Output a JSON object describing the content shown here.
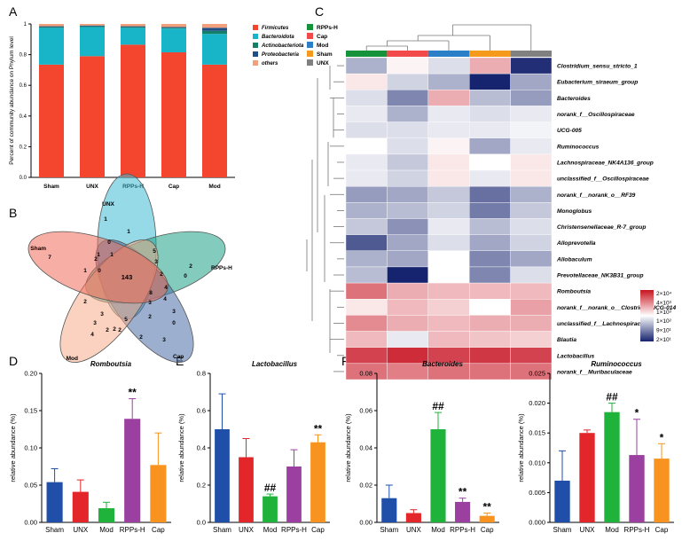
{
  "colors": {
    "firmicutes": "#f4462e",
    "bacteroidota": "#18b4c8",
    "actinobacteriota": "#14806a",
    "proteobacteria": "#1f4f86",
    "others": "#f2a07c",
    "rpps_h": "#16923a",
    "cap": "#f24a4a",
    "mod": "#2a7fc6",
    "sham": "#f59a1d",
    "unx": "#808080",
    "bar_sham": "#1f4fa8",
    "bar_unx": "#e3262a",
    "bar_mod": "#20b33c",
    "bar_rpps": "#9b3fa0",
    "bar_cap": "#f7931e"
  },
  "panel_letters": [
    "A",
    "B",
    "C",
    "D",
    "E",
    "F",
    "G"
  ],
  "chart_data": [
    {
      "id": "A",
      "type": "bar",
      "stacked": true,
      "ylabel": "Percent of community abundance on Phylum level",
      "ylim": [
        0,
        1
      ],
      "yticks": [
        "0.0",
        "0.2",
        "0.4",
        "0.6",
        "0.8",
        "1"
      ],
      "categories": [
        "Sham",
        "UNX",
        "RPPs-H",
        "Cap",
        "Mod"
      ],
      "series": [
        {
          "name": "Firmicutes",
          "values": [
            0.735,
            0.79,
            0.865,
            0.815,
            0.735
          ]
        },
        {
          "name": "Bacteroidota",
          "values": [
            0.24,
            0.19,
            0.11,
            0.155,
            0.2
          ]
        },
        {
          "name": "Actinobacteriota",
          "values": [
            0.005,
            0.005,
            0.005,
            0.005,
            0.02
          ]
        },
        {
          "name": "Proteobacteria",
          "values": [
            0.005,
            0.005,
            0.005,
            0.005,
            0.02
          ]
        },
        {
          "name": "others",
          "values": [
            0.015,
            0.01,
            0.015,
            0.02,
            0.025
          ]
        }
      ]
    },
    {
      "id": "B",
      "type": "venn",
      "sets": [
        "UNX",
        "RPPs-H",
        "Cap",
        "Mod",
        "Sham"
      ],
      "core": "143",
      "counts": [
        "1",
        "1",
        "0",
        "5",
        "3",
        "2",
        "2",
        "4",
        "4",
        "3",
        "0",
        "8",
        "3",
        "2",
        "0",
        "3",
        "2",
        "5",
        "2",
        "2",
        "2",
        "3",
        "4",
        "7",
        "2",
        "1",
        "1",
        "0",
        "1",
        "2",
        "3"
      ]
    },
    {
      "id": "C",
      "type": "heatmap",
      "groups": [
        "RPPs-H",
        "Cap",
        "Mod",
        "Sham",
        "UNX"
      ],
      "rows": [
        "Clostridium_sensu_stricto_1",
        "Eubacterium_siraeum_group",
        "Bacteroides",
        "norank_f__Oscillospiraceae",
        "UCG-005",
        "Ruminococcus",
        "Lachnospiraceae_NK4A136_group",
        "unclassified_f__Oscillospiraceae",
        "norank_f__norank_o__RF39",
        "Monoglobus",
        "Christensenellaceae_R-7_group",
        "Alloprevotella",
        "Allobaculum",
        "Prevotellaceae_NK3B31_group",
        "Romboutsia",
        "norank_f__norank_o__Clostridia_UCG-014",
        "unclassified_f__Lachnospiraceae",
        "Blautia",
        "Lactobacillus",
        "norank_f__Muribaculaceae"
      ],
      "values": [
        [
          -0.35,
          0.05,
          -0.15,
          0.35,
          -0.95
        ],
        [
          0.1,
          -0.2,
          -0.35,
          -1.0,
          -0.4
        ],
        [
          -0.15,
          -0.55,
          0.35,
          -0.3,
          -0.45
        ],
        [
          -0.1,
          -0.35,
          -0.1,
          -0.15,
          -0.1
        ],
        [
          -0.15,
          -0.15,
          -0.1,
          -0.1,
          -0.05
        ],
        [
          0.0,
          -0.15,
          0.05,
          -0.4,
          -0.1
        ],
        [
          -0.1,
          -0.25,
          0.1,
          0.0,
          0.1
        ],
        [
          -0.1,
          -0.2,
          0.1,
          -0.1,
          0.1
        ],
        [
          -0.45,
          -0.4,
          -0.25,
          -0.65,
          -0.35
        ],
        [
          -0.35,
          -0.3,
          -0.2,
          -0.6,
          -0.25
        ],
        [
          -0.25,
          -0.5,
          -0.1,
          -0.3,
          -0.15
        ],
        [
          -0.75,
          -0.4,
          -0.15,
          -0.4,
          -0.2
        ],
        [
          -0.35,
          -0.4,
          0.0,
          -0.55,
          -0.4
        ],
        [
          -0.3,
          -1.0,
          0.0,
          -0.55,
          -0.15
        ],
        [
          0.6,
          0.35,
          0.3,
          0.3,
          0.3
        ],
        [
          0.1,
          0.3,
          0.2,
          0.0,
          0.4
        ],
        [
          0.5,
          0.35,
          0.3,
          0.35,
          0.35
        ],
        [
          0.3,
          -0.1,
          0.3,
          0.25,
          0.2
        ],
        [
          0.8,
          0.9,
          0.8,
          0.85,
          0.8
        ],
        [
          0.6,
          0.55,
          0.6,
          0.6,
          0.6
        ]
      ],
      "legend_labels": [
        "2×10⁴",
        "4×10³",
        "1×10³",
        "1×10²",
        "9×10¹",
        "2×10¹"
      ]
    },
    {
      "id": "D",
      "type": "bar",
      "title": "Romboutsia",
      "ylabel": "relative abundance (%)",
      "ylim": [
        0,
        0.2
      ],
      "yticks": [
        "0.00",
        "0.05",
        "0.10",
        "0.15",
        "0.20"
      ],
      "categories": [
        "Sham",
        "UNX",
        "Mod",
        "RPPs-H",
        "Cap"
      ],
      "values": [
        0.054,
        0.041,
        0.019,
        0.139,
        0.077
      ],
      "errors": [
        0.018,
        0.016,
        0.008,
        0.027,
        0.043
      ],
      "marks": [
        "",
        "",
        "",
        "**",
        ""
      ]
    },
    {
      "id": "E",
      "type": "bar",
      "title": "Lactobacillus",
      "ylabel": "relative abundance (%)",
      "ylim": [
        0,
        0.8
      ],
      "yticks": [
        "0.0",
        "0.2",
        "0.4",
        "0.6",
        "0.8"
      ],
      "categories": [
        "Sham",
        "UNX",
        "Mod",
        "RPPs-H",
        "Cap"
      ],
      "values": [
        0.5,
        0.35,
        0.14,
        0.3,
        0.43
      ],
      "errors": [
        0.19,
        0.1,
        0.012,
        0.09,
        0.04
      ],
      "marks": [
        "",
        "",
        "##",
        "",
        "**"
      ]
    },
    {
      "id": "F",
      "type": "bar",
      "title": "Bacteroides",
      "ylabel": "relative abundance (%)",
      "ylim": [
        0,
        0.08
      ],
      "yticks": [
        "0.00",
        "0.02",
        "0.04",
        "0.06",
        "0.08"
      ],
      "categories": [
        "Sham",
        "UNX",
        "Mod",
        "RPPs-H",
        "Cap"
      ],
      "values": [
        0.013,
        0.005,
        0.05,
        0.011,
        0.0035
      ],
      "errors": [
        0.007,
        0.0018,
        0.009,
        0.002,
        0.0015
      ],
      "marks": [
        "",
        "",
        "##",
        "**",
        "**"
      ]
    },
    {
      "id": "G",
      "type": "bar",
      "title": "Ruminococcus",
      "ylabel": "relative abundance (%)",
      "ylim": [
        0,
        0.025
      ],
      "yticks": [
        "0.000",
        "0.005",
        "0.010",
        "0.015",
        "0.020",
        "0.025"
      ],
      "categories": [
        "Sham",
        "UNX",
        "Mod",
        "RPPs-H",
        "Cap"
      ],
      "values": [
        0.007,
        0.015,
        0.0185,
        0.0113,
        0.0107
      ],
      "errors": [
        0.005,
        0.0005,
        0.0015,
        0.006,
        0.0025
      ],
      "marks": [
        "",
        "",
        "##",
        "*",
        "*"
      ]
    }
  ]
}
